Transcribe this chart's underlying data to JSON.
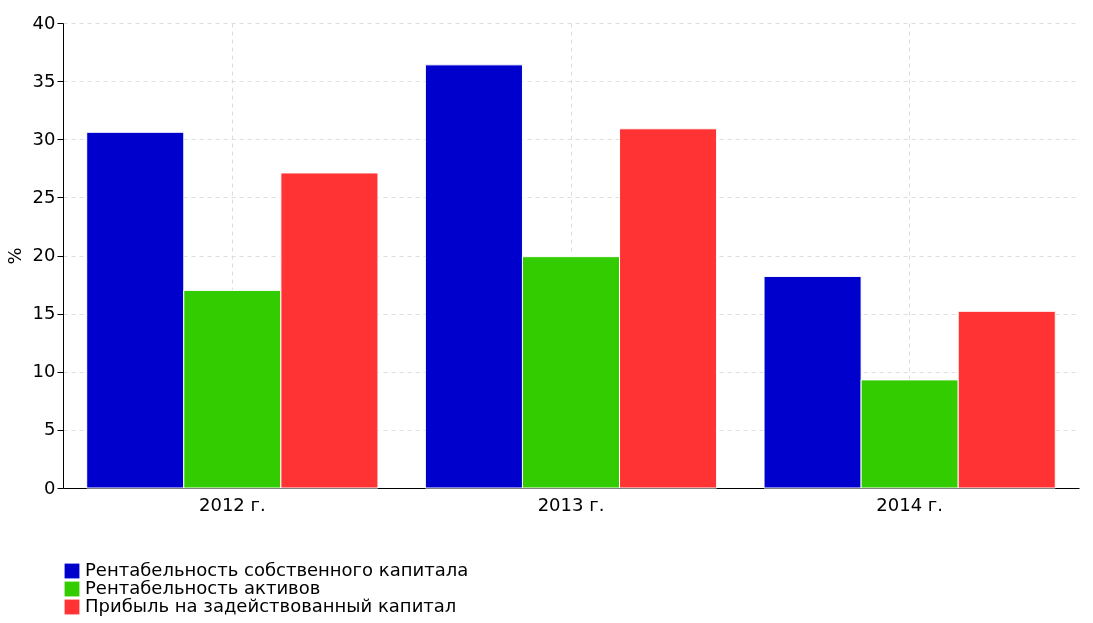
{
  "chart_data": {
    "type": "bar",
    "ylabel": "%",
    "categories": [
      "2012 г.",
      "2013 г.",
      "2014 г."
    ],
    "series": [
      {
        "name": "Рентабельность собственного капитала",
        "color": "#0000cc",
        "values": [
          30.6,
          36.4,
          18.2
        ]
      },
      {
        "name": "Рентабельность активов",
        "color": "#33cc00",
        "values": [
          17.0,
          19.9,
          9.3
        ]
      },
      {
        "name": "Прибыль на задействованный капитал",
        "color": "#ff3333",
        "values": [
          27.1,
          30.9,
          15.2
        ]
      }
    ],
    "ylim": [
      0,
      40
    ],
    "yticks": [
      0,
      5,
      10,
      15,
      20,
      25,
      30,
      35,
      40
    ],
    "grid": true,
    "legend": "bottom left"
  }
}
